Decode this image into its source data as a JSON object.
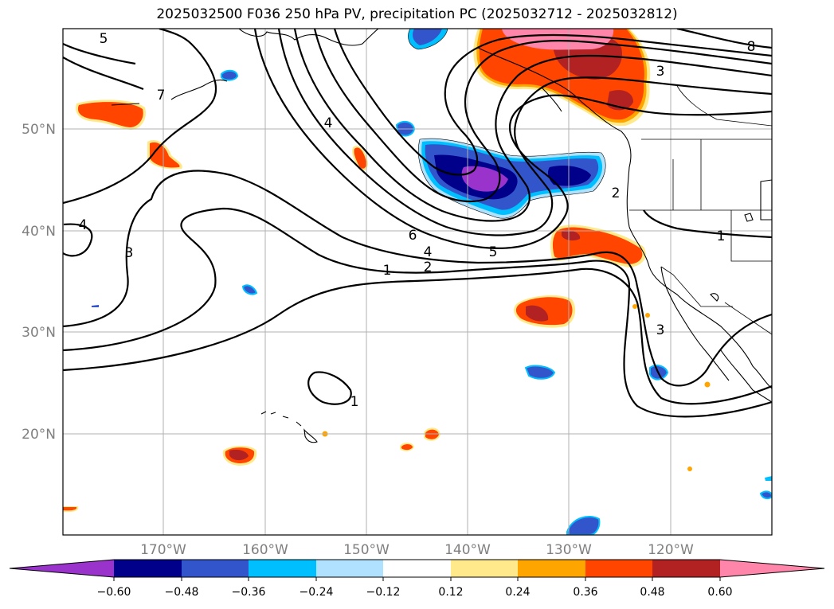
{
  "title": "2025032500 F036 250 hPa PV, precipitation PC (2025032712 - 2025032812)",
  "map": {
    "lat_labels": [
      "50°N",
      "40°N",
      "30°N",
      "20°N"
    ],
    "lon_labels": [
      "170°W",
      "160°W",
      "150°W",
      "140°W",
      "130°W",
      "120°W"
    ],
    "contour_labels": [
      "5",
      "4",
      "7",
      "4",
      "3",
      "6",
      "4",
      "5",
      "1",
      "2",
      "2",
      "1",
      "1",
      "3",
      "3",
      "8"
    ]
  },
  "colorbar": {
    "ticks": [
      "−0.60",
      "−0.48",
      "−0.36",
      "−0.24",
      "−0.12",
      "0.12",
      "0.24",
      "0.36",
      "0.48",
      "0.60"
    ],
    "colors": [
      "#9933cc",
      "#00008b",
      "#3355cc",
      "#00bfff",
      "#b0e2ff",
      "#ffffff",
      "#ffe98a",
      "#ffa500",
      "#ff4500",
      "#b22222",
      "#ff85aa"
    ]
  }
}
